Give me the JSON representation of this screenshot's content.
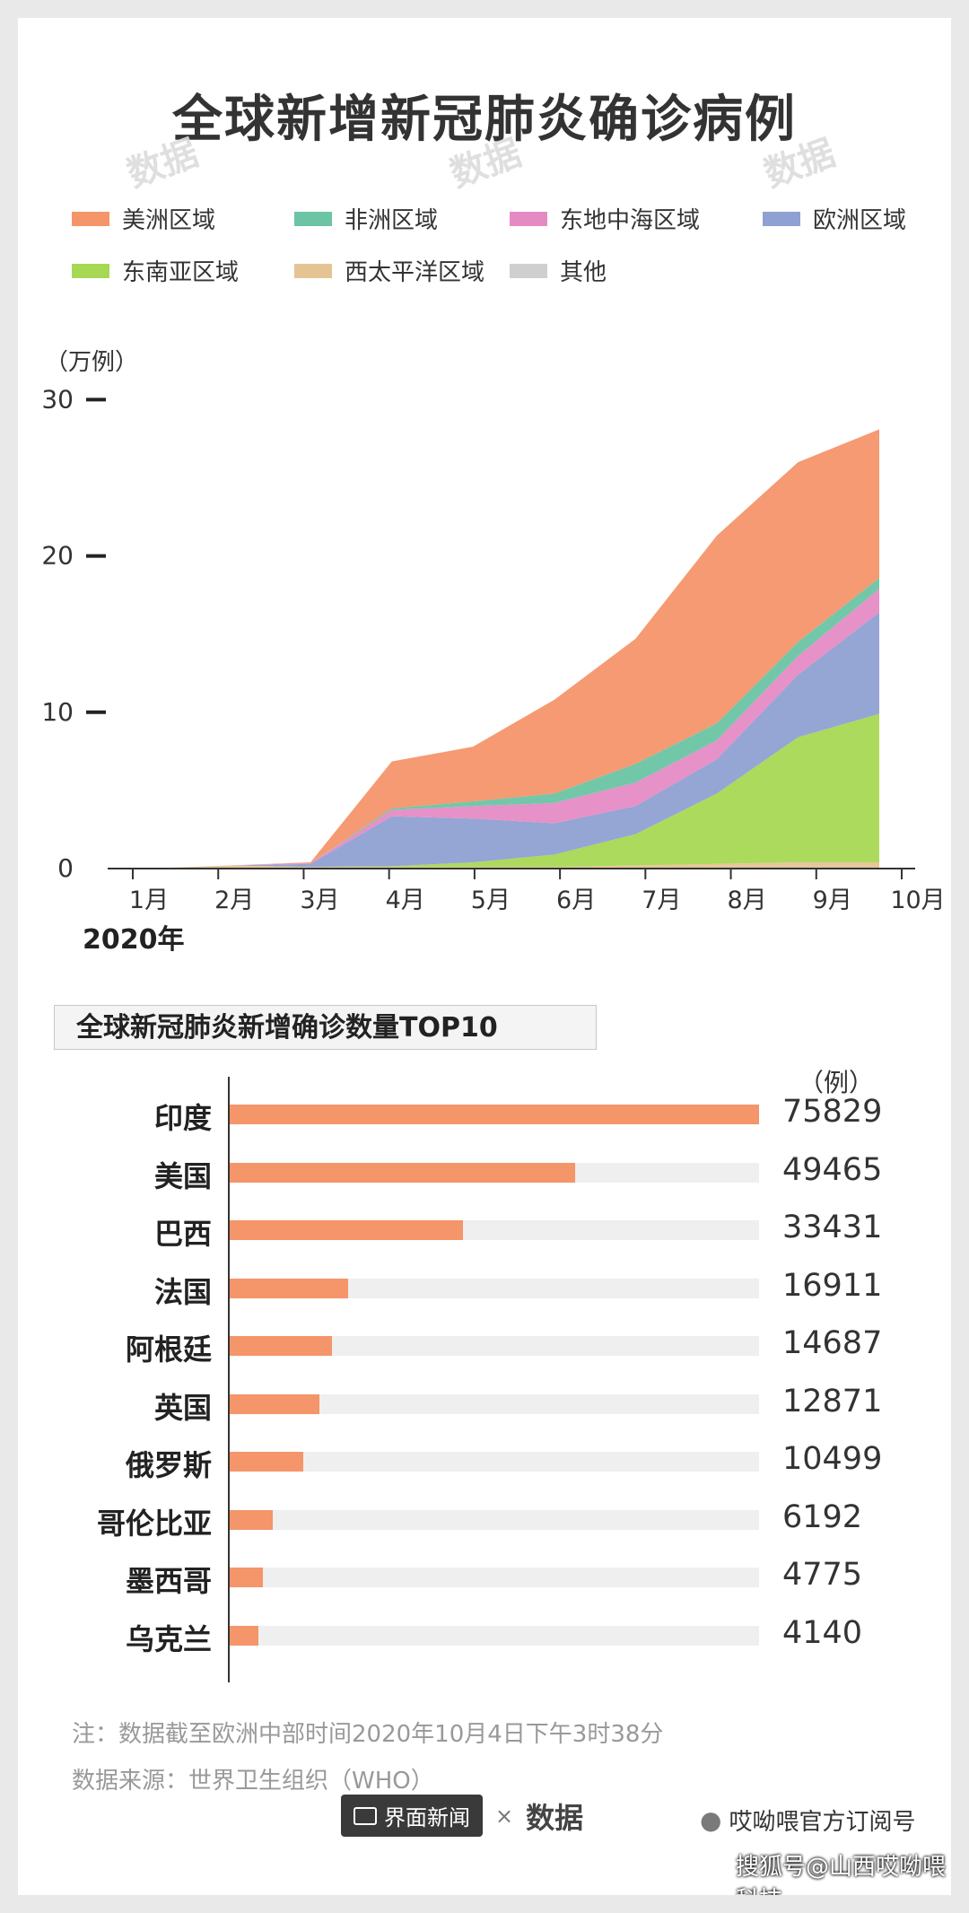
{
  "title": "全球新增新冠肺炎确诊病例",
  "watermark": "数据",
  "legend": [
    {
      "name": "美洲区域",
      "color": "#f4956a"
    },
    {
      "name": "非洲区域",
      "color": "#6cc4a4"
    },
    {
      "name": "东地中海区域",
      "color": "#e58bc4"
    },
    {
      "name": "欧洲区域",
      "color": "#8fa0d2"
    },
    {
      "name": "东南亚区域",
      "color": "#a6d854"
    },
    {
      "name": "西太平洋区域",
      "color": "#e5c494"
    },
    {
      "name": "其他",
      "color": "#cfcfcf"
    }
  ],
  "chart_data": [
    {
      "type": "area",
      "title": "全球新增新冠肺炎确诊病例",
      "ylabel": "（万例）",
      "yticks": [
        "0",
        "10",
        "20",
        "30"
      ],
      "ylim": [
        0,
        32
      ],
      "xticks": [
        "1月",
        "2月",
        "3月",
        "4月",
        "5月",
        "6月",
        "7月",
        "8月",
        "9月",
        "10月"
      ],
      "xlabel": "2020年",
      "x": [
        "1月",
        "2月",
        "3月",
        "4月",
        "5月",
        "6月",
        "7月",
        "8月",
        "9月",
        "10月初"
      ],
      "stacked": true,
      "series": [
        {
          "name": "西太平洋区域",
          "values": [
            0.0,
            0.2,
            0.1,
            0.1,
            0.1,
            0.1,
            0.2,
            0.3,
            0.4,
            0.4
          ]
        },
        {
          "name": "东南亚区域",
          "values": [
            0.0,
            0.0,
            0.0,
            0.05,
            0.3,
            0.8,
            2.0,
            4.5,
            8.0,
            9.5
          ]
        },
        {
          "name": "欧洲区域",
          "values": [
            0.0,
            0.0,
            0.2,
            3.2,
            2.8,
            2.0,
            1.8,
            2.2,
            4.0,
            6.5
          ]
        },
        {
          "name": "东地中海区域",
          "values": [
            0.0,
            0.0,
            0.05,
            0.4,
            0.8,
            1.3,
            1.5,
            1.2,
            1.2,
            1.5
          ]
        },
        {
          "name": "非洲区域",
          "values": [
            0.0,
            0.0,
            0.0,
            0.1,
            0.3,
            0.6,
            1.2,
            1.1,
            0.9,
            0.7
          ]
        },
        {
          "name": "美洲区域",
          "values": [
            0.0,
            0.0,
            0.05,
            3.0,
            3.5,
            6.0,
            8.0,
            12.0,
            11.5,
            9.5
          ]
        },
        {
          "name": "其他",
          "values": [
            0.0,
            0.0,
            0.0,
            0.0,
            0.0,
            0.0,
            0.0,
            0.0,
            0.0,
            0.0
          ]
        }
      ]
    },
    {
      "type": "bar",
      "title": "全球新冠肺炎新增确诊数量TOP10",
      "unit": "（例）",
      "categories": [
        "印度",
        "美国",
        "巴西",
        "法国",
        "阿根廷",
        "英国",
        "俄罗斯",
        "哥伦比亚",
        "墨西哥",
        "乌克兰"
      ],
      "values": [
        75829,
        49465,
        33431,
        16911,
        14687,
        12871,
        10499,
        6192,
        4775,
        4140
      ],
      "value_labels": [
        "75829",
        "49465",
        "33431",
        "16911",
        "14687",
        "12871",
        "10499",
        "6192",
        "4775",
        "4140"
      ]
    }
  ],
  "notes": {
    "note1": "注：数据截至欧洲中部时间2020年10月4日下午3时38分",
    "note2": "数据来源：世界卫生组织（WHO）"
  },
  "footer": {
    "logo": "界面新闻",
    "x": "×",
    "brand": "数据",
    "wechat": "哎呦喂官方订阅号",
    "sohu": "搜狐号@山西哎呦喂科技"
  }
}
